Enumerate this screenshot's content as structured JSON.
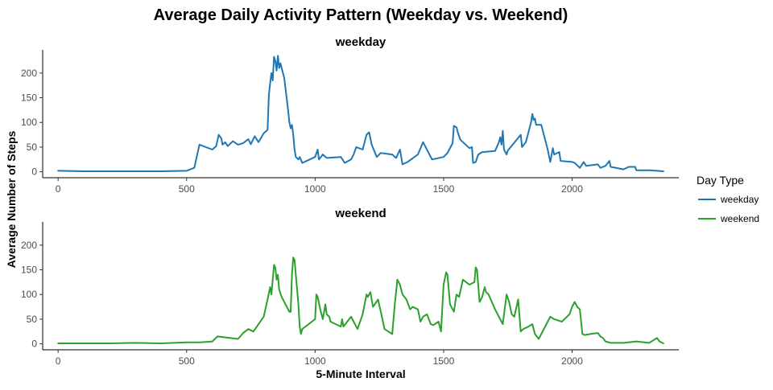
{
  "chart_data": {
    "type": "line",
    "title": "Average Daily Activity Pattern (Weekday vs. Weekend)",
    "xlabel": "5-Minute Interval",
    "ylabel": "Average Number of Steps",
    "xlim": [
      -60,
      2415
    ],
    "ylim": [
      -12,
      247
    ],
    "x_ticks": [
      0,
      500,
      1000,
      1500,
      2000
    ],
    "y_ticks": [
      0,
      50,
      100,
      150,
      200
    ],
    "grid": false,
    "legend": {
      "title": "Day Type",
      "placement": "right",
      "entries": [
        {
          "label": "weekday",
          "color": "#1f77b4"
        },
        {
          "label": "weekend",
          "color": "#2ca02c"
        }
      ]
    },
    "panels": [
      {
        "facet_label": "weekday",
        "series_name": "weekday",
        "color": "#1f77b4",
        "points": [
          [
            0,
            2
          ],
          [
            100,
            1
          ],
          [
            200,
            1
          ],
          [
            300,
            1
          ],
          [
            400,
            1
          ],
          [
            500,
            2
          ],
          [
            530,
            8
          ],
          [
            550,
            55
          ],
          [
            600,
            45
          ],
          [
            615,
            52
          ],
          [
            625,
            75
          ],
          [
            635,
            68
          ],
          [
            640,
            55
          ],
          [
            650,
            60
          ],
          [
            660,
            52
          ],
          [
            680,
            62
          ],
          [
            700,
            55
          ],
          [
            720,
            58
          ],
          [
            740,
            66
          ],
          [
            750,
            56
          ],
          [
            765,
            72
          ],
          [
            780,
            60
          ],
          [
            800,
            78
          ],
          [
            815,
            85
          ],
          [
            820,
            155
          ],
          [
            825,
            180
          ],
          [
            830,
            200
          ],
          [
            835,
            185
          ],
          [
            840,
            233
          ],
          [
            845,
            225
          ],
          [
            850,
            205
          ],
          [
            855,
            235
          ],
          [
            860,
            210
          ],
          [
            865,
            220
          ],
          [
            875,
            200
          ],
          [
            880,
            190
          ],
          [
            895,
            125
          ],
          [
            900,
            100
          ],
          [
            905,
            88
          ],
          [
            910,
            95
          ],
          [
            915,
            75
          ],
          [
            920,
            45
          ],
          [
            925,
            30
          ],
          [
            935,
            25
          ],
          [
            940,
            30
          ],
          [
            950,
            18
          ],
          [
            1000,
            30
          ],
          [
            1010,
            45
          ],
          [
            1015,
            25
          ],
          [
            1030,
            35
          ],
          [
            1045,
            28
          ],
          [
            1100,
            30
          ],
          [
            1115,
            18
          ],
          [
            1140,
            25
          ],
          [
            1150,
            35
          ],
          [
            1160,
            50
          ],
          [
            1185,
            45
          ],
          [
            1200,
            75
          ],
          [
            1210,
            80
          ],
          [
            1220,
            55
          ],
          [
            1240,
            30
          ],
          [
            1255,
            38
          ],
          [
            1300,
            35
          ],
          [
            1315,
            28
          ],
          [
            1330,
            45
          ],
          [
            1340,
            15
          ],
          [
            1360,
            20
          ],
          [
            1400,
            35
          ],
          [
            1420,
            60
          ],
          [
            1440,
            40
          ],
          [
            1455,
            25
          ],
          [
            1500,
            30
          ],
          [
            1515,
            38
          ],
          [
            1535,
            58
          ],
          [
            1540,
            93
          ],
          [
            1550,
            90
          ],
          [
            1555,
            80
          ],
          [
            1565,
            65
          ],
          [
            1600,
            48
          ],
          [
            1610,
            50
          ],
          [
            1615,
            18
          ],
          [
            1625,
            20
          ],
          [
            1635,
            35
          ],
          [
            1650,
            40
          ],
          [
            1700,
            42
          ],
          [
            1715,
            60
          ],
          [
            1720,
            70
          ],
          [
            1725,
            55
          ],
          [
            1730,
            83
          ],
          [
            1735,
            45
          ],
          [
            1740,
            40
          ],
          [
            1745,
            35
          ],
          [
            1750,
            43
          ],
          [
            1800,
            75
          ],
          [
            1805,
            50
          ],
          [
            1820,
            60
          ],
          [
            1830,
            80
          ],
          [
            1840,
            100
          ],
          [
            1845,
            117
          ],
          [
            1850,
            105
          ],
          [
            1855,
            108
          ],
          [
            1860,
            95
          ],
          [
            1880,
            95
          ],
          [
            1900,
            55
          ],
          [
            1905,
            45
          ],
          [
            1915,
            20
          ],
          [
            1925,
            48
          ],
          [
            1930,
            35
          ],
          [
            1950,
            40
          ],
          [
            1955,
            22
          ],
          [
            2000,
            20
          ],
          [
            2010,
            18
          ],
          [
            2030,
            8
          ],
          [
            2045,
            20
          ],
          [
            2055,
            12
          ],
          [
            2100,
            15
          ],
          [
            2110,
            8
          ],
          [
            2130,
            12
          ],
          [
            2145,
            22
          ],
          [
            2150,
            10
          ],
          [
            2200,
            5
          ],
          [
            2220,
            10
          ],
          [
            2245,
            10
          ],
          [
            2250,
            3
          ],
          [
            2300,
            3
          ],
          [
            2330,
            2
          ],
          [
            2355,
            1
          ]
        ]
      },
      {
        "facet_label": "weekend",
        "series_name": "weekend",
        "color": "#2ca02c",
        "points": [
          [
            0,
            1
          ],
          [
            50,
            1
          ],
          [
            100,
            1
          ],
          [
            150,
            1
          ],
          [
            200,
            1
          ],
          [
            300,
            2
          ],
          [
            400,
            1
          ],
          [
            500,
            3
          ],
          [
            550,
            3
          ],
          [
            600,
            5
          ],
          [
            620,
            15
          ],
          [
            700,
            10
          ],
          [
            720,
            22
          ],
          [
            740,
            30
          ],
          [
            760,
            25
          ],
          [
            780,
            40
          ],
          [
            800,
            55
          ],
          [
            815,
            90
          ],
          [
            825,
            115
          ],
          [
            830,
            100
          ],
          [
            840,
            160
          ],
          [
            845,
            155
          ],
          [
            850,
            130
          ],
          [
            855,
            140
          ],
          [
            860,
            110
          ],
          [
            870,
            95
          ],
          [
            885,
            80
          ],
          [
            900,
            65
          ],
          [
            905,
            65
          ],
          [
            910,
            140
          ],
          [
            915,
            175
          ],
          [
            920,
            170
          ],
          [
            925,
            140
          ],
          [
            930,
            110
          ],
          [
            935,
            80
          ],
          [
            940,
            35
          ],
          [
            945,
            20
          ],
          [
            950,
            30
          ],
          [
            1000,
            50
          ],
          [
            1005,
            100
          ],
          [
            1010,
            95
          ],
          [
            1020,
            70
          ],
          [
            1030,
            50
          ],
          [
            1040,
            80
          ],
          [
            1045,
            60
          ],
          [
            1055,
            55
          ],
          [
            1060,
            45
          ],
          [
            1100,
            35
          ],
          [
            1105,
            50
          ],
          [
            1110,
            35
          ],
          [
            1140,
            55
          ],
          [
            1150,
            45
          ],
          [
            1165,
            30
          ],
          [
            1185,
            60
          ],
          [
            1200,
            100
          ],
          [
            1205,
            95
          ],
          [
            1215,
            105
          ],
          [
            1225,
            75
          ],
          [
            1245,
            90
          ],
          [
            1260,
            55
          ],
          [
            1270,
            30
          ],
          [
            1300,
            20
          ],
          [
            1310,
            80
          ],
          [
            1320,
            130
          ],
          [
            1330,
            120
          ],
          [
            1340,
            100
          ],
          [
            1355,
            90
          ],
          [
            1370,
            70
          ],
          [
            1380,
            75
          ],
          [
            1400,
            70
          ],
          [
            1410,
            45
          ],
          [
            1420,
            55
          ],
          [
            1435,
            60
          ],
          [
            1450,
            40
          ],
          [
            1460,
            38
          ],
          [
            1480,
            45
          ],
          [
            1490,
            25
          ],
          [
            1500,
            120
          ],
          [
            1510,
            145
          ],
          [
            1515,
            140
          ],
          [
            1525,
            80
          ],
          [
            1540,
            65
          ],
          [
            1550,
            100
          ],
          [
            1560,
            95
          ],
          [
            1575,
            130
          ],
          [
            1600,
            120
          ],
          [
            1620,
            125
          ],
          [
            1625,
            155
          ],
          [
            1630,
            150
          ],
          [
            1640,
            85
          ],
          [
            1650,
            95
          ],
          [
            1660,
            115
          ],
          [
            1665,
            105
          ],
          [
            1675,
            100
          ],
          [
            1700,
            70
          ],
          [
            1715,
            55
          ],
          [
            1730,
            40
          ],
          [
            1745,
            100
          ],
          [
            1755,
            85
          ],
          [
            1765,
            60
          ],
          [
            1775,
            55
          ],
          [
            1790,
            90
          ],
          [
            1800,
            25
          ],
          [
            1810,
            30
          ],
          [
            1830,
            35
          ],
          [
            1845,
            40
          ],
          [
            1855,
            20
          ],
          [
            1870,
            10
          ],
          [
            1900,
            40
          ],
          [
            1915,
            55
          ],
          [
            1930,
            50
          ],
          [
            1960,
            45
          ],
          [
            1990,
            60
          ],
          [
            2000,
            75
          ],
          [
            2010,
            85
          ],
          [
            2020,
            75
          ],
          [
            2030,
            70
          ],
          [
            2040,
            20
          ],
          [
            2050,
            18
          ],
          [
            2070,
            20
          ],
          [
            2100,
            22
          ],
          [
            2110,
            15
          ],
          [
            2120,
            12
          ],
          [
            2130,
            5
          ],
          [
            2150,
            2
          ],
          [
            2200,
            2
          ],
          [
            2250,
            5
          ],
          [
            2300,
            2
          ],
          [
            2330,
            12
          ],
          [
            2340,
            5
          ],
          [
            2355,
            1
          ]
        ]
      }
    ]
  }
}
